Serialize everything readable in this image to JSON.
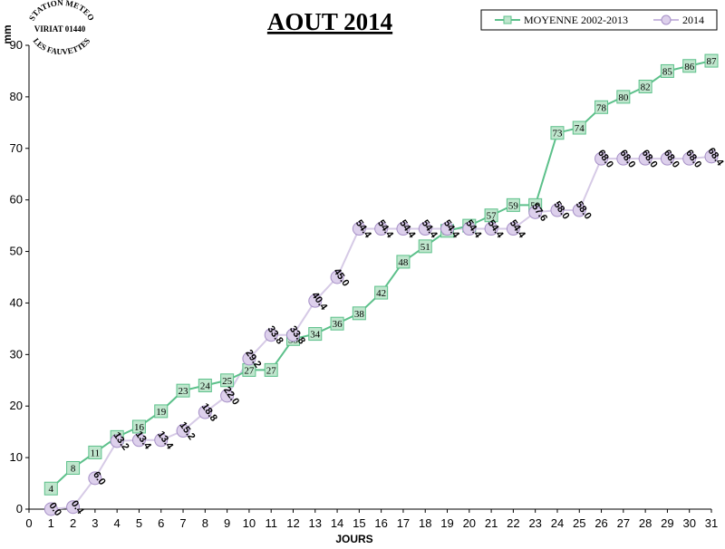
{
  "logo": {
    "line1": "STATION METEO",
    "line2": "VIRIAT 01440",
    "line3": "LES FAUVETTES"
  },
  "chart_data": {
    "type": "line",
    "title": "AOUT 2014",
    "xlabel": "JOURS",
    "ylabel": "mm",
    "xlim": [
      0,
      31
    ],
    "ylim": [
      0,
      90
    ],
    "x_ticks": [
      0,
      1,
      2,
      3,
      4,
      5,
      6,
      7,
      8,
      9,
      10,
      11,
      12,
      13,
      14,
      15,
      16,
      17,
      18,
      19,
      20,
      21,
      22,
      23,
      24,
      25,
      26,
      27,
      28,
      29,
      30,
      31
    ],
    "y_ticks": [
      0,
      10,
      20,
      30,
      40,
      50,
      60,
      70,
      80,
      90
    ],
    "grid": false,
    "legend_position": "top-right",
    "series": [
      {
        "name": "MOYENNE 2002-2013",
        "color": "#5cc08a",
        "marker": "square",
        "x": [
          1,
          2,
          3,
          4,
          5,
          6,
          7,
          8,
          9,
          10,
          11,
          12,
          13,
          14,
          15,
          16,
          17,
          18,
          19,
          20,
          21,
          22,
          23,
          24,
          25,
          26,
          27,
          28,
          29,
          30,
          31
        ],
        "values": [
          4,
          8,
          11,
          14,
          16,
          19,
          23,
          24,
          25,
          27,
          27,
          33,
          34,
          36,
          38,
          42,
          48,
          51,
          54,
          55,
          57,
          59,
          59,
          73,
          74,
          78,
          80,
          82,
          85,
          86,
          87
        ],
        "labels": [
          "4",
          "8",
          "11",
          "14",
          "16",
          "19",
          "23",
          "24",
          "25",
          "27",
          "27",
          "33",
          "34",
          "36",
          "38",
          "42",
          "48",
          "51",
          "54",
          "55",
          "57",
          "59",
          "59",
          "73",
          "74",
          "78",
          "80",
          "82",
          "85",
          "86",
          "87"
        ]
      },
      {
        "name": "2014",
        "color": "#c9b8df",
        "marker": "circle",
        "x": [
          1,
          2,
          3,
          4,
          5,
          6,
          7,
          8,
          9,
          10,
          11,
          12,
          13,
          14,
          15,
          16,
          17,
          18,
          19,
          20,
          21,
          22,
          23,
          24,
          25,
          26,
          27,
          28,
          29,
          30,
          31
        ],
        "values": [
          0.0,
          0.4,
          6.0,
          13.2,
          13.4,
          13.4,
          15.2,
          18.8,
          22.0,
          29.2,
          33.8,
          33.8,
          40.4,
          45.0,
          54.4,
          54.4,
          54.4,
          54.4,
          54.4,
          54.4,
          54.4,
          54.4,
          57.6,
          58.0,
          58.0,
          68.0,
          68.0,
          68.0,
          68.0,
          68.0,
          68.4
        ],
        "labels": [
          "0.0",
          "0.4",
          "6.0",
          "13.2",
          "13.4",
          "13.4",
          "15.2",
          "18.8",
          "22.0",
          "29.2",
          "33.8",
          "33.8",
          "40.4",
          "45.0",
          "54.4",
          "54.4",
          "54.4",
          "54.4",
          "54.4",
          "54.4",
          "54.4",
          "54.4",
          "57.6",
          "58.0",
          "58.0",
          "68.0",
          "68.0",
          "68.0",
          "68.0",
          "68.0",
          "68.4"
        ]
      }
    ]
  }
}
